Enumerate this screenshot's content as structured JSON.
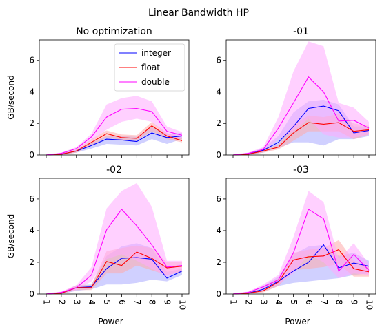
{
  "figure": {
    "suptitle": "Linear Bandwidth HP",
    "legend": {
      "placement": "upper-right of first panel",
      "entries": [
        {
          "label": "integer",
          "color": "#0000ff"
        },
        {
          "label": "float",
          "color": "#ff0000"
        },
        {
          "label": "double",
          "color": "#ff00ff"
        }
      ]
    },
    "fill_colors": {
      "integer": "#aaaaff",
      "float": "#ffaaaa",
      "double": "#ffaaff"
    }
  },
  "chart_data": [
    {
      "type": "line",
      "title": "No optimization",
      "xlabel": "",
      "ylabel": "GB/second",
      "x": [
        1,
        2,
        3,
        4,
        5,
        6,
        7,
        8,
        9,
        10
      ],
      "ylim": [
        0,
        7.3
      ],
      "yticks": [
        0,
        2,
        4,
        6
      ],
      "xtick_labels_visible": false,
      "grid": false,
      "series": [
        {
          "name": "integer",
          "values": [
            0.0,
            0.05,
            0.25,
            0.6,
            1.0,
            0.95,
            0.85,
            1.4,
            1.1,
            1.2
          ],
          "lower": [
            0.0,
            0.0,
            0.15,
            0.4,
            0.7,
            0.65,
            0.6,
            1.0,
            0.7,
            1.0
          ],
          "upper": [
            0.05,
            0.1,
            0.35,
            0.8,
            1.2,
            1.2,
            1.15,
            1.8,
            1.35,
            1.4
          ]
        },
        {
          "name": "float",
          "values": [
            0.0,
            0.05,
            0.25,
            0.8,
            1.35,
            1.1,
            1.05,
            1.85,
            1.2,
            0.9
          ],
          "lower": [
            0.0,
            0.0,
            0.15,
            0.6,
            1.1,
            0.95,
            0.9,
            1.5,
            1.0,
            0.8
          ],
          "upper": [
            0.05,
            0.1,
            0.35,
            1.0,
            1.55,
            1.3,
            1.25,
            2.1,
            1.4,
            1.1
          ]
        },
        {
          "name": "double",
          "values": [
            0.0,
            0.1,
            0.4,
            1.15,
            2.4,
            2.9,
            2.95,
            2.75,
            1.5,
            1.25
          ],
          "lower": [
            0.0,
            0.05,
            0.3,
            0.9,
            1.6,
            2.1,
            2.3,
            2.1,
            1.2,
            1.05
          ],
          "upper": [
            0.05,
            0.15,
            0.5,
            1.35,
            3.2,
            3.6,
            3.75,
            3.4,
            1.8,
            1.45
          ]
        }
      ]
    },
    {
      "type": "line",
      "title": "-01",
      "xlabel": "",
      "ylabel": "",
      "x": [
        1,
        2,
        3,
        4,
        5,
        6,
        7,
        8,
        9,
        10
      ],
      "ylim": [
        0,
        7.3
      ],
      "yticks": [
        0,
        2,
        4,
        6
      ],
      "xtick_labels_visible": false,
      "grid": false,
      "series": [
        {
          "name": "integer",
          "values": [
            0.0,
            0.05,
            0.3,
            0.8,
            1.8,
            2.95,
            3.1,
            2.8,
            1.4,
            1.55
          ],
          "lower": [
            0.0,
            0.0,
            0.15,
            0.45,
            0.8,
            0.8,
            0.6,
            1.0,
            1.0,
            1.2
          ],
          "upper": [
            0.05,
            0.1,
            0.45,
            1.2,
            2.7,
            3.4,
            3.5,
            3.2,
            1.8,
            1.8
          ]
        },
        {
          "name": "float",
          "values": [
            0.0,
            0.05,
            0.25,
            0.5,
            1.4,
            2.05,
            1.95,
            2.05,
            1.5,
            1.6
          ],
          "lower": [
            0.0,
            0.0,
            0.15,
            0.35,
            0.9,
            1.5,
            1.5,
            1.5,
            1.0,
            1.3
          ],
          "upper": [
            0.05,
            0.1,
            0.35,
            0.65,
            1.9,
            2.5,
            2.4,
            2.6,
            2.0,
            1.85
          ]
        },
        {
          "name": "double",
          "values": [
            0.0,
            0.1,
            0.35,
            1.7,
            3.3,
            4.95,
            4.0,
            2.15,
            2.2,
            1.7
          ],
          "lower": [
            0.0,
            0.05,
            0.2,
            1.0,
            1.5,
            2.3,
            1.3,
            1.1,
            1.1,
            1.3
          ],
          "upper": [
            0.05,
            0.15,
            0.5,
            2.4,
            5.3,
            7.2,
            6.9,
            3.3,
            3.0,
            2.1
          ]
        }
      ]
    },
    {
      "type": "line",
      "title": "-02",
      "xlabel": "Power",
      "ylabel": "GB/second",
      "x": [
        1,
        2,
        3,
        4,
        5,
        6,
        7,
        8,
        9,
        10
      ],
      "ylim": [
        0,
        7.3
      ],
      "yticks": [
        0,
        2,
        4,
        6
      ],
      "xtick_labels": [
        "1",
        "2",
        "3",
        "4",
        "5",
        "6",
        "7",
        "8",
        "9",
        "10"
      ],
      "grid": false,
      "series": [
        {
          "name": "integer",
          "values": [
            0.0,
            0.05,
            0.4,
            0.45,
            1.6,
            2.25,
            2.3,
            2.2,
            1.0,
            1.45
          ],
          "lower": [
            0.0,
            0.0,
            0.2,
            0.3,
            0.6,
            0.6,
            0.7,
            0.9,
            0.8,
            1.2
          ],
          "upper": [
            0.05,
            0.1,
            0.55,
            0.6,
            2.4,
            3.0,
            3.2,
            2.9,
            1.4,
            1.6
          ]
        },
        {
          "name": "float",
          "values": [
            0.0,
            0.05,
            0.4,
            0.4,
            2.05,
            1.8,
            2.65,
            2.25,
            1.65,
            1.75
          ],
          "lower": [
            0.0,
            0.0,
            0.25,
            0.25,
            1.3,
            1.3,
            1.8,
            1.5,
            1.2,
            1.4
          ],
          "upper": [
            0.05,
            0.1,
            0.55,
            0.55,
            2.7,
            2.9,
            3.05,
            2.9,
            2.0,
            2.0
          ]
        },
        {
          "name": "double",
          "values": [
            0.0,
            0.1,
            0.4,
            1.2,
            4.05,
            5.35,
            4.3,
            3.1,
            1.7,
            1.8
          ],
          "lower": [
            0.0,
            0.05,
            0.25,
            0.8,
            2.2,
            2.5,
            2.1,
            1.6,
            1.1,
            1.5
          ],
          "upper": [
            0.05,
            0.15,
            0.55,
            1.7,
            5.4,
            6.5,
            7.0,
            5.5,
            2.1,
            2.1
          ]
        }
      ]
    },
    {
      "type": "line",
      "title": "-03",
      "xlabel": "Power",
      "ylabel": "",
      "x": [
        1,
        2,
        3,
        4,
        5,
        6,
        7,
        8,
        9,
        10
      ],
      "ylim": [
        0,
        7.3
      ],
      "yticks": [
        0,
        2,
        4,
        6
      ],
      "xtick_labels": [
        "1",
        "2",
        "3",
        "4",
        "5",
        "6",
        "7",
        "8",
        "9",
        "10"
      ],
      "grid": false,
      "series": [
        {
          "name": "integer",
          "values": [
            0.0,
            0.05,
            0.3,
            0.8,
            1.45,
            2.0,
            3.1,
            1.65,
            1.95,
            1.75
          ],
          "lower": [
            0.0,
            0.0,
            0.15,
            0.5,
            0.7,
            0.8,
            0.9,
            1.0,
            1.2,
            1.3
          ],
          "upper": [
            0.05,
            0.1,
            0.5,
            1.1,
            2.5,
            3.0,
            3.1,
            2.4,
            2.6,
            2.1
          ]
        },
        {
          "name": "float",
          "values": [
            0.0,
            0.05,
            0.2,
            0.75,
            2.15,
            2.35,
            2.4,
            2.8,
            1.6,
            1.4
          ],
          "lower": [
            0.0,
            0.0,
            0.1,
            0.5,
            1.5,
            1.6,
            1.7,
            1.9,
            1.1,
            1.1
          ],
          "upper": [
            0.05,
            0.1,
            0.35,
            1.0,
            2.6,
            2.8,
            2.9,
            3.4,
            2.1,
            1.7
          ]
        },
        {
          "name": "double",
          "values": [
            0.0,
            0.1,
            0.45,
            0.9,
            2.6,
            5.35,
            4.75,
            1.45,
            2.5,
            1.5
          ],
          "lower": [
            0.0,
            0.05,
            0.25,
            0.6,
            1.3,
            2.5,
            2.0,
            1.0,
            1.3,
            1.2
          ],
          "upper": [
            0.05,
            0.15,
            0.6,
            1.2,
            3.6,
            6.5,
            5.8,
            2.2,
            3.2,
            1.9
          ]
        }
      ]
    }
  ]
}
